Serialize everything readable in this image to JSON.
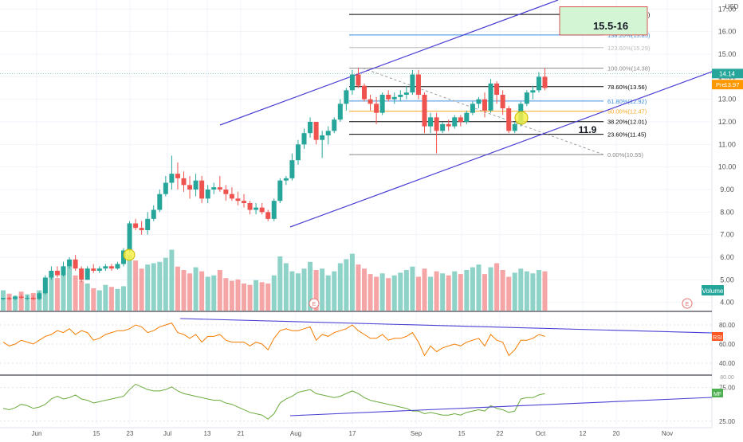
{
  "chart_data": {
    "type": "candlestick",
    "currency_label": "USD",
    "x_tick_labels": [
      "Jun",
      "15",
      "23",
      "Jul",
      "13",
      "21",
      "Aug",
      "17",
      "Sep",
      "15",
      "22",
      "Oct",
      "12",
      "20",
      "Nov"
    ],
    "price_axis": {
      "ylim": [
        3.6,
        17.4
      ],
      "ticks": [
        4.0,
        5.0,
        6.0,
        7.0,
        8.0,
        9.0,
        10.0,
        11.0,
        12.0,
        13.0,
        14.0,
        15.0,
        16.0,
        17.0
      ],
      "tick_labels": [
        "4.00",
        "5.00",
        "6.00",
        "7.00",
        "8.00",
        "9.00",
        "10.00",
        "11.00",
        "12.00",
        "13.00",
        "14.00",
        "15.00",
        "16.00",
        "17.00"
      ]
    },
    "candles": [
      [
        4.15,
        4.2,
        4.1,
        4.2
      ],
      [
        4.2,
        4.25,
        4.1,
        4.15
      ],
      [
        4.15,
        4.3,
        4.1,
        4.25
      ],
      [
        4.25,
        4.35,
        4.15,
        4.2
      ],
      [
        4.2,
        4.3,
        4.1,
        4.2
      ],
      [
        4.2,
        4.3,
        4.1,
        4.15
      ],
      [
        4.15,
        4.45,
        4.1,
        4.4
      ],
      [
        4.4,
        5.2,
        4.35,
        5.1
      ],
      [
        5.1,
        5.6,
        5.0,
        5.4
      ],
      [
        5.4,
        5.6,
        5.1,
        5.2
      ],
      [
        5.2,
        5.8,
        5.15,
        5.6
      ],
      [
        5.6,
        6.0,
        5.5,
        5.9
      ],
      [
        5.9,
        6.1,
        5.4,
        5.5
      ],
      [
        5.5,
        5.6,
        4.9,
        5.0
      ],
      [
        5.0,
        5.6,
        5.0,
        5.5
      ],
      [
        5.5,
        5.7,
        5.3,
        5.4
      ],
      [
        5.4,
        5.6,
        5.3,
        5.5
      ],
      [
        5.5,
        5.7,
        5.4,
        5.6
      ],
      [
        5.6,
        5.7,
        5.4,
        5.5
      ],
      [
        5.5,
        5.8,
        5.45,
        5.7
      ],
      [
        5.7,
        6.4,
        5.6,
        6.3
      ],
      [
        6.3,
        7.6,
        6.2,
        7.5
      ],
      [
        7.5,
        7.7,
        7.2,
        7.3
      ],
      [
        7.3,
        7.6,
        7.0,
        7.2
      ],
      [
        7.2,
        8.0,
        7.0,
        7.7
      ],
      [
        7.7,
        8.3,
        7.6,
        8.1
      ],
      [
        8.1,
        9.0,
        8.0,
        8.8
      ],
      [
        8.8,
        9.6,
        8.7,
        9.3
      ],
      [
        9.3,
        10.5,
        9.0,
        9.7
      ],
      [
        9.7,
        10.2,
        9.0,
        9.5
      ],
      [
        9.5,
        9.8,
        8.9,
        9.2
      ],
      [
        9.2,
        9.6,
        8.6,
        9.0
      ],
      [
        9.0,
        9.7,
        8.7,
        9.4
      ],
      [
        9.4,
        9.6,
        8.4,
        8.6
      ],
      [
        8.6,
        9.2,
        8.4,
        9.0
      ],
      [
        9.0,
        9.3,
        8.8,
        9.1
      ],
      [
        9.1,
        9.6,
        8.9,
        9.0
      ],
      [
        9.0,
        9.2,
        8.5,
        8.8
      ],
      [
        8.8,
        9.1,
        8.5,
        8.6
      ],
      [
        8.6,
        8.9,
        8.3,
        8.5
      ],
      [
        8.5,
        8.8,
        8.2,
        8.4
      ],
      [
        8.4,
        8.5,
        7.9,
        8.1
      ],
      [
        8.1,
        8.4,
        7.9,
        8.2
      ],
      [
        8.2,
        8.4,
        7.9,
        8.0
      ],
      [
        8.0,
        8.1,
        7.6,
        7.7
      ],
      [
        7.7,
        8.6,
        7.6,
        8.5
      ],
      [
        8.5,
        9.5,
        8.4,
        9.4
      ],
      [
        9.4,
        9.6,
        9.2,
        9.5
      ],
      [
        9.5,
        10.6,
        9.4,
        10.3
      ],
      [
        10.3,
        11.2,
        10.1,
        11.0
      ],
      [
        11.0,
        11.7,
        10.8,
        11.5
      ],
      [
        11.5,
        12.2,
        11.3,
        12.0
      ],
      [
        12.0,
        12.0,
        11.0,
        11.2
      ],
      [
        11.2,
        11.6,
        10.4,
        11.4
      ],
      [
        11.4,
        11.8,
        11.0,
        11.6
      ],
      [
        11.6,
        12.2,
        11.5,
        12.1
      ],
      [
        12.1,
        13.0,
        12.0,
        12.8
      ],
      [
        12.8,
        13.5,
        12.5,
        13.4
      ],
      [
        13.4,
        14.3,
        13.2,
        14.1
      ],
      [
        14.1,
        14.4,
        13.5,
        13.6
      ],
      [
        13.6,
        13.7,
        12.9,
        13.0
      ],
      [
        13.0,
        13.2,
        12.5,
        12.8
      ],
      [
        12.8,
        13.1,
        11.9,
        12.4
      ],
      [
        12.4,
        13.3,
        12.3,
        13.2
      ],
      [
        13.2,
        13.4,
        12.9,
        13.0
      ],
      [
        13.0,
        13.3,
        12.8,
        13.1
      ],
      [
        13.1,
        13.4,
        12.9,
        13.2
      ],
      [
        13.2,
        13.6,
        13.0,
        13.3
      ],
      [
        13.3,
        14.3,
        13.2,
        14.1
      ],
      [
        14.1,
        14.3,
        13.0,
        13.2
      ],
      [
        13.2,
        13.3,
        11.5,
        11.8
      ],
      [
        11.8,
        12.4,
        11.5,
        12.2
      ],
      [
        12.2,
        12.4,
        10.6,
        11.6
      ],
      [
        11.6,
        12.0,
        11.5,
        11.9
      ],
      [
        11.9,
        12.1,
        11.6,
        11.8
      ],
      [
        11.8,
        12.3,
        11.7,
        12.2
      ],
      [
        12.2,
        12.3,
        11.8,
        12.0
      ],
      [
        12.0,
        12.5,
        11.9,
        12.4
      ],
      [
        12.4,
        12.9,
        12.3,
        12.8
      ],
      [
        12.8,
        13.1,
        12.6,
        13.0
      ],
      [
        13.0,
        13.3,
        12.2,
        12.5
      ],
      [
        12.5,
        13.9,
        12.4,
        13.7
      ],
      [
        13.7,
        13.8,
        12.8,
        13.2
      ],
      [
        13.2,
        13.4,
        12.3,
        12.6
      ],
      [
        12.6,
        12.7,
        11.5,
        11.6
      ],
      [
        11.6,
        12.0,
        11.5,
        11.9
      ],
      [
        11.9,
        12.9,
        11.8,
        12.8
      ],
      [
        12.8,
        13.4,
        12.7,
        13.3
      ],
      [
        13.3,
        13.6,
        13.0,
        13.4
      ],
      [
        13.4,
        14.2,
        13.3,
        14.0
      ],
      [
        14.0,
        14.38,
        13.4,
        13.5
      ]
    ],
    "volume": [
      30,
      25,
      22,
      28,
      24,
      26,
      30,
      42,
      55,
      48,
      58,
      68,
      52,
      44,
      40,
      33,
      30,
      38,
      35,
      32,
      36,
      82,
      74,
      62,
      68,
      70,
      72,
      78,
      90,
      65,
      60,
      55,
      64,
      58,
      50,
      52,
      60,
      48,
      44,
      46,
      40,
      38,
      45,
      42,
      40,
      52,
      80,
      70,
      58,
      55,
      62,
      72,
      60,
      62,
      52,
      58,
      70,
      76,
      84,
      68,
      62,
      54,
      50,
      55,
      48,
      52,
      56,
      60,
      65,
      50,
      62,
      50,
      58,
      55,
      52,
      58,
      54,
      60,
      64,
      68,
      54,
      64,
      70,
      60,
      50,
      56,
      62,
      58,
      55,
      60,
      58
    ],
    "fib_levels": [
      {
        "label": "161.80%(16.76)",
        "value": 16.76,
        "color": "#000000"
      },
      {
        "label": "138.20%(15.85)",
        "value": 15.85,
        "color": "#3f8fdf"
      },
      {
        "label": "123.60%(15.29)",
        "value": 15.29,
        "color": "#bbbbbb"
      },
      {
        "label": "100.00%(14.38)",
        "value": 14.38,
        "color": "#888888"
      },
      {
        "label": "78.60%(13.56)",
        "value": 13.56,
        "color": "#000000"
      },
      {
        "label": "61.80%(12.92)",
        "value": 12.92,
        "color": "#3f8fdf"
      },
      {
        "label": "50.00%(12.47)",
        "value": 12.47,
        "color": "#f5a623"
      },
      {
        "label": "38.20%(12.01)",
        "value": 12.01,
        "color": "#000000"
      },
      {
        "label": "23.60%(11.45)",
        "value": 11.45,
        "color": "#000000"
      },
      {
        "label": "0.00%(10.55)",
        "value": 10.55,
        "color": "#888888"
      }
    ],
    "target_box": {
      "text": "15.5-16",
      "low": 15.85,
      "high": 17.1
    },
    "annotation_11_9": "11.9",
    "last_price_label": "14.14",
    "pre_market": {
      "tag": "Pre",
      "value": "13.97"
    },
    "volume_label": "Volume",
    "earnings_marker": "E",
    "rsi": {
      "label": "RSI",
      "ylim": [
        30,
        90
      ],
      "ticks": [
        40.0,
        60.0,
        80.0
      ],
      "tick_labels": [
        "40.00",
        "60.00",
        "80.00"
      ],
      "values": [
        62,
        58,
        60,
        64,
        62,
        60,
        64,
        68,
        70,
        74,
        72,
        76,
        70,
        74,
        72,
        64,
        66,
        70,
        72,
        74,
        74,
        76,
        80,
        78,
        72,
        74,
        78,
        80,
        82,
        72,
        70,
        66,
        70,
        62,
        68,
        68,
        70,
        64,
        62,
        62,
        62,
        58,
        62,
        60,
        54,
        66,
        74,
        76,
        74,
        74,
        76,
        78,
        64,
        70,
        68,
        72,
        74,
        76,
        80,
        74,
        70,
        66,
        66,
        70,
        64,
        66,
        66,
        68,
        72,
        62,
        48,
        58,
        52,
        56,
        58,
        60,
        58,
        62,
        64,
        66,
        58,
        70,
        64,
        62,
        48,
        54,
        64,
        64,
        66,
        70,
        68
      ]
    },
    "mfi": {
      "label": "MF",
      "ylim": [
        20,
        90
      ],
      "ticks": [
        25.0,
        75.0
      ],
      "tick_labels": [
        "25.00",
        "75.00"
      ],
      "top_label": "80.00",
      "values": [
        44,
        42,
        45,
        50,
        48,
        44,
        46,
        50,
        58,
        62,
        58,
        60,
        64,
        58,
        56,
        52,
        54,
        56,
        58,
        60,
        62,
        72,
        80,
        76,
        72,
        70,
        70,
        72,
        76,
        70,
        66,
        64,
        62,
        60,
        58,
        56,
        56,
        52,
        50,
        46,
        42,
        38,
        36,
        34,
        28,
        36,
        52,
        58,
        62,
        68,
        70,
        72,
        66,
        64,
        62,
        60,
        62,
        66,
        70,
        66,
        60,
        56,
        54,
        52,
        50,
        48,
        46,
        44,
        40,
        40,
        36,
        38,
        36,
        34,
        34,
        36,
        34,
        38,
        40,
        42,
        40,
        48,
        44,
        42,
        38,
        40,
        58,
        60,
        60,
        64,
        66
      ]
    }
  }
}
